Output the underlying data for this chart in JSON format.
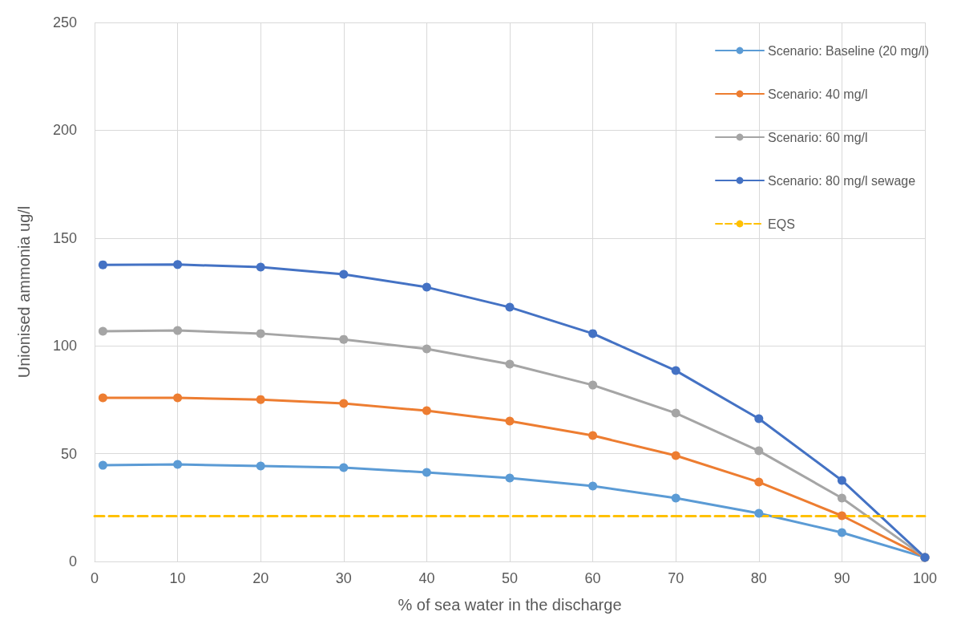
{
  "chart_data": {
    "type": "line",
    "xlabel": "% of sea water in the discharge",
    "ylabel": "Unionised ammonia ug/l",
    "x": [
      1,
      10,
      20,
      30,
      40,
      50,
      60,
      70,
      80,
      90,
      100
    ],
    "xlim": [
      0,
      100
    ],
    "xticks": [
      0,
      10,
      20,
      30,
      40,
      50,
      60,
      70,
      80,
      90,
      100
    ],
    "ylim": [
      0,
      250
    ],
    "yticks": [
      0,
      50,
      100,
      150,
      200,
      250
    ],
    "grid": true,
    "legend": "top right",
    "marker": "circle",
    "line_style": "solid",
    "series": [
      {
        "name": "Scenario: Baseline (20 mg/l)",
        "color": "#5b9bd5",
        "values": [
          44.6,
          45,
          44.3,
          43.5,
          41.3,
          38.7,
          35,
          29.4,
          22.3,
          13.4,
          1.9
        ]
      },
      {
        "name": "Scenario: 40 mg/l",
        "color": "#ed7d31",
        "values": [
          75.9,
          75.9,
          75.1,
          73.3,
          69.9,
          65.1,
          58.4,
          49.1,
          36.8,
          21.2,
          1.9
        ]
      },
      {
        "name": "Scenario: 60 mg/l",
        "color": "#a5a5a5",
        "values": [
          106.8,
          107.1,
          105.7,
          103,
          98.6,
          91.5,
          81.8,
          68.8,
          51.3,
          29.4,
          1.9
        ]
      },
      {
        "name": "Scenario: 80 mg/l sewage",
        "color": "#4472c4",
        "values": [
          137.6,
          137.7,
          136.5,
          133.2,
          127.2,
          117.9,
          105.7,
          88.5,
          66.2,
          37.6,
          1.9
        ]
      },
      {
        "name": "EQS",
        "color": "#ffc000",
        "x": [
          0,
          100
        ],
        "values": [
          21,
          21
        ],
        "marker": "none",
        "line_style": "dashed"
      }
    ]
  }
}
